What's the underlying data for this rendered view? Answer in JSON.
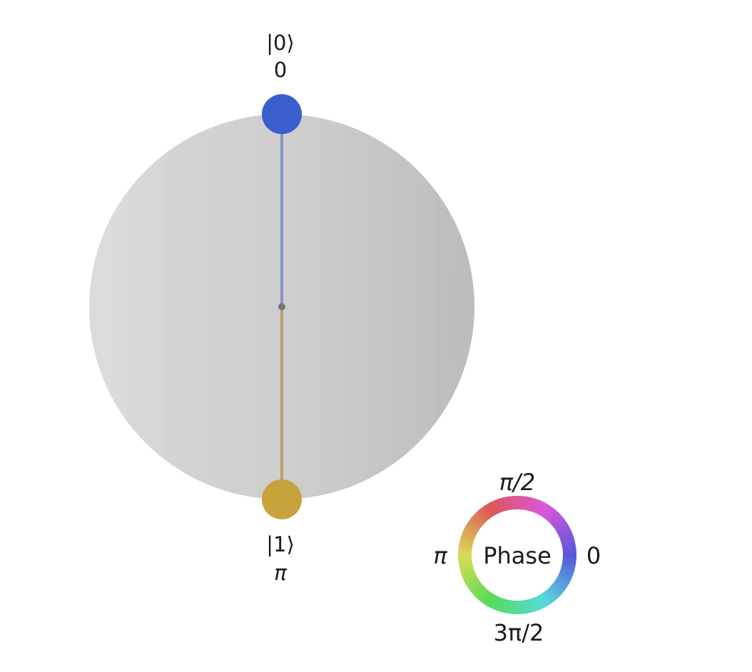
{
  "qsphere": {
    "states": [
      {
        "ket_label": "|0⟩",
        "phase_label": "0",
        "color": "#3a5fcd",
        "probability": 0.5
      },
      {
        "ket_label": "|1⟩",
        "phase_label": "π",
        "color": "#c8a23c",
        "probability": 0.5
      }
    ],
    "sphere_color": "#cfcfcf",
    "center_color": "#777777"
  },
  "phase_wheel": {
    "center_label": "Phase",
    "label_top": "π/2",
    "label_left": "π",
    "label_right": "0",
    "label_bottom": "3π/2"
  }
}
